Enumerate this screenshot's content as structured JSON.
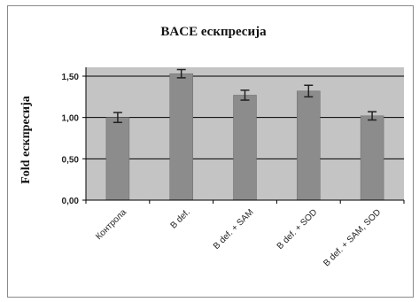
{
  "chart_data": {
    "type": "bar",
    "title": "BACE ескпресија",
    "ylabel": "Fold ескпресија",
    "xlabel": "",
    "categories": [
      "Контрола",
      "B def.",
      "B def. + SAM",
      "B def. + SOD",
      "B def. + SAM, SOD"
    ],
    "values": [
      1.0,
      1.53,
      1.27,
      1.32,
      1.02
    ],
    "errors": [
      0.06,
      0.05,
      0.06,
      0.07,
      0.05
    ],
    "ylim": [
      0.0,
      1.5
    ],
    "yticks": [
      "0,00",
      "0,50",
      "1,00",
      "1,50"
    ],
    "ytick_values": [
      0,
      0.5,
      1.0,
      1.5
    ],
    "grid": true,
    "colors": {
      "bar": "#8c8c8c",
      "plot_background": "#c4c4c4",
      "grid": "#000000",
      "error_bar": "#222222"
    }
  }
}
